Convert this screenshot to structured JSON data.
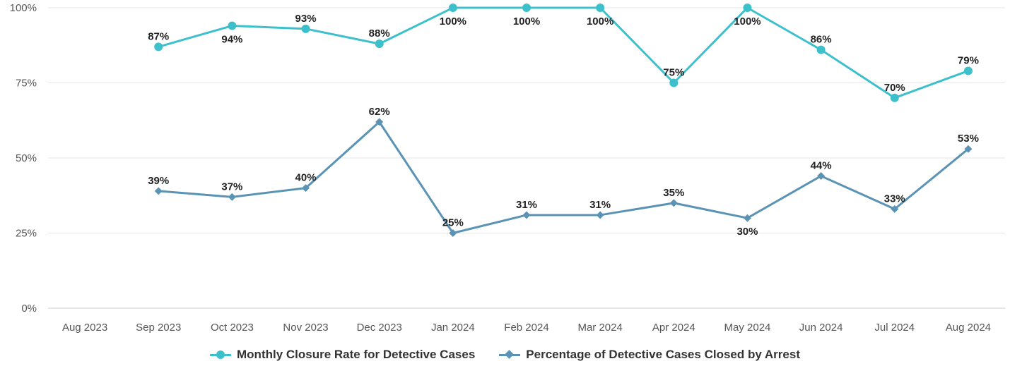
{
  "chart_data": {
    "type": "line",
    "title": "",
    "xlabel": "",
    "ylabel": "",
    "categories": [
      "Aug 2023",
      "Sep 2023",
      "Oct 2023",
      "Nov 2023",
      "Dec 2023",
      "Jan 2024",
      "Feb 2024",
      "Mar 2024",
      "Apr 2024",
      "May 2024",
      "Jun 2024",
      "Jul 2024",
      "Aug 2024"
    ],
    "ylim": [
      0,
      100
    ],
    "yticks": [
      0,
      25,
      50,
      75,
      100
    ],
    "ytick_labels": [
      "0%",
      "25%",
      "50%",
      "75%",
      "100%"
    ],
    "grid": true,
    "legend_position": "bottom-center",
    "series": [
      {
        "name": "Monthly Closure Rate for Detective Cases",
        "color": "#3cc0cc",
        "marker": "circle",
        "values": [
          null,
          87,
          94,
          93,
          88,
          100,
          100,
          100,
          75,
          100,
          86,
          70,
          79
        ],
        "labels": [
          "",
          "87%",
          "94%",
          "93%",
          "88%",
          "100%",
          "100%",
          "100%",
          "75%",
          "100%",
          "86%",
          "70%",
          "79%"
        ]
      },
      {
        "name": "Percentage of Detective Cases Closed by Arrest",
        "color": "#5a93b4",
        "marker": "diamond",
        "values": [
          null,
          39,
          37,
          40,
          62,
          25,
          31,
          31,
          35,
          30,
          44,
          33,
          53
        ],
        "labels": [
          "",
          "39%",
          "37%",
          "40%",
          "62%",
          "25%",
          "31%",
          "31%",
          "35%",
          "30%",
          "44%",
          "33%",
          "53%"
        ]
      }
    ]
  }
}
